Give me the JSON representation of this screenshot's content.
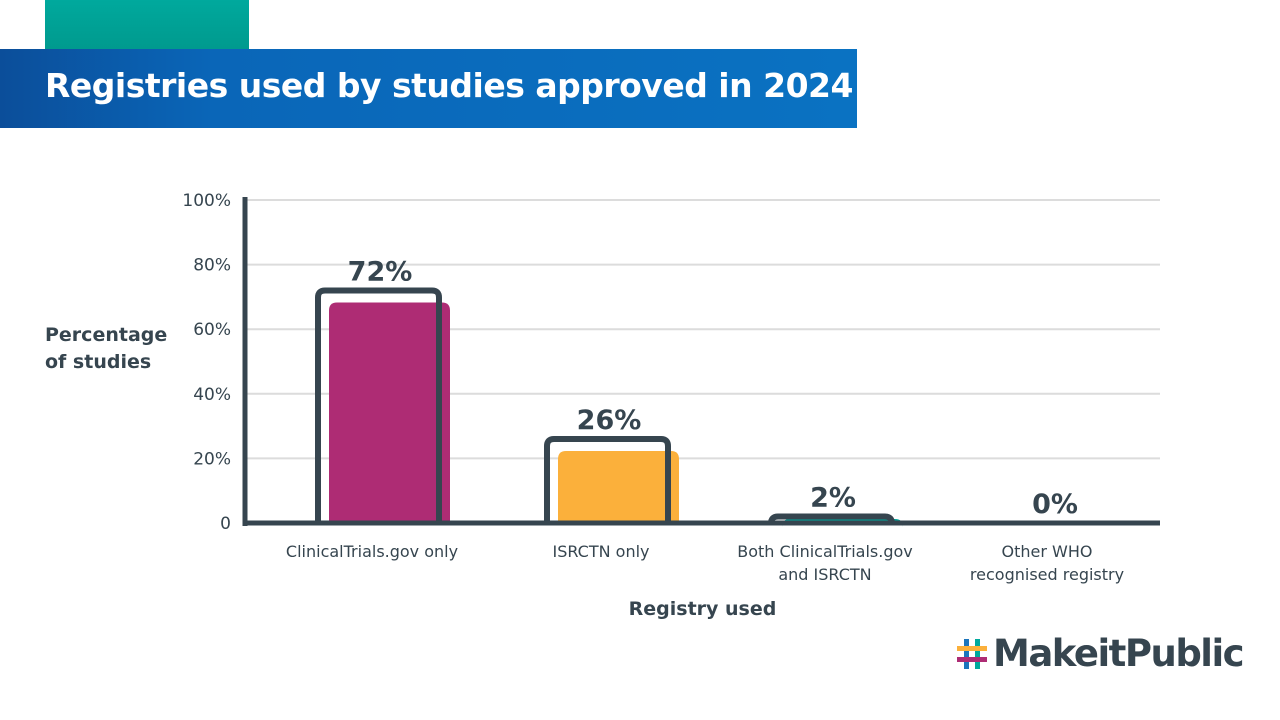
{
  "header": {
    "title": "Registries used by studies approved in 2024"
  },
  "chart_data": {
    "type": "bar",
    "title": "Registries used by studies approved in 2024",
    "xlabel": "Registry used",
    "ylabel": "Percentage of studies",
    "ylabel_lines": [
      "Percentage",
      "of studies"
    ],
    "categories": [
      [
        "ClinicalTrials.gov only"
      ],
      [
        "ISRCTN only"
      ],
      [
        "Both ClinicalTrials.gov",
        "and ISRCTN"
      ],
      [
        "Other WHO",
        "recognised registry"
      ]
    ],
    "values": [
      72,
      26,
      2,
      0
    ],
    "data_labels": [
      "72%",
      "26%",
      "2%",
      "0%"
    ],
    "colors": [
      "#ae2c74",
      "#fbb03b",
      "#00a99d",
      "#00a99d"
    ],
    "ylim": [
      0,
      100
    ],
    "yticks": [
      0,
      20,
      40,
      60,
      80,
      100
    ],
    "ytick_labels": [
      "0",
      "20%",
      "40%",
      "60%",
      "80%",
      "100%"
    ],
    "grid": true
  },
  "logo": {
    "text": "MakeitPublic"
  }
}
